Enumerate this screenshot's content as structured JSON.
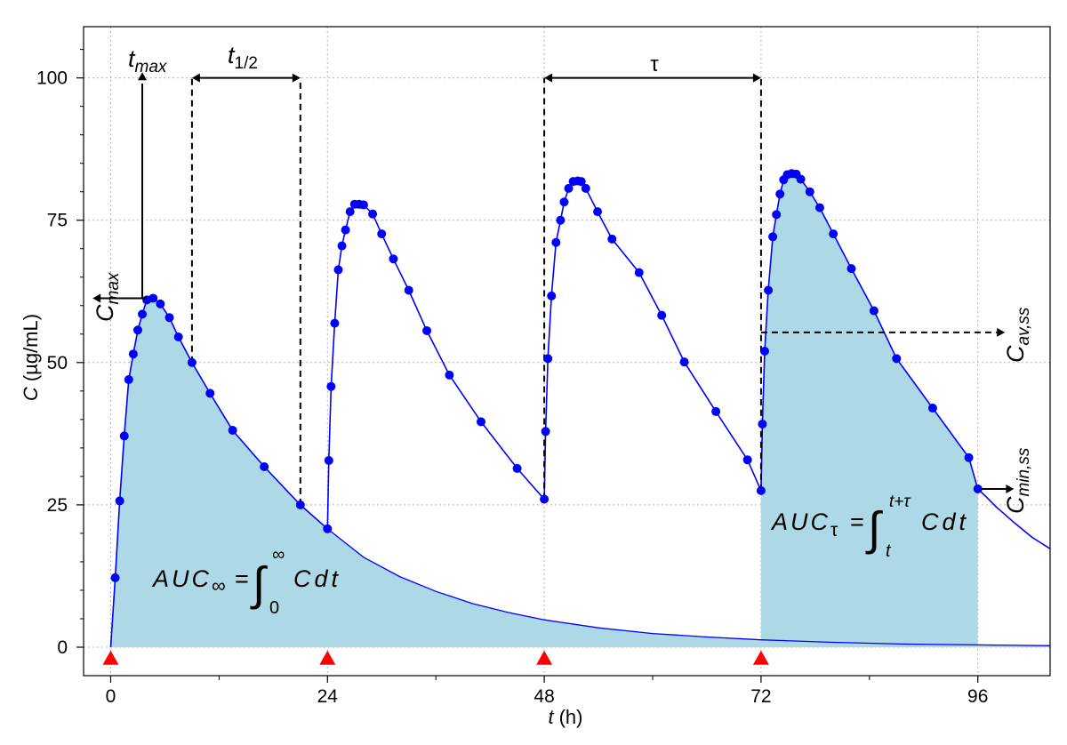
{
  "chart_data": {
    "type": "line",
    "xlabel": "(h)",
    "xlabel_symbol": "t",
    "ylabel": "(µg/mL)",
    "ylabel_symbol": "C",
    "xlim": [
      -3,
      104
    ],
    "ylim": [
      -5,
      109
    ],
    "x_ticks": [
      0,
      24,
      48,
      72,
      96
    ],
    "y_ticks": [
      0,
      25,
      50,
      75,
      100
    ],
    "grid": "dotted",
    "dose_times": [
      0,
      24,
      48,
      72
    ],
    "colors": {
      "curve": "#0000ff",
      "points": "#0000ff",
      "auc_fill": "#add8e6",
      "dose_marker": "#ff0000",
      "tau_label": "#ff0000",
      "grid": "#b4b4b4"
    },
    "series": [
      {
        "values": [
          [
            0,
            0
          ],
          [
            0.5,
            12.2
          ],
          [
            1,
            25.7
          ],
          [
            1.5,
            37.1
          ],
          [
            2,
            47.0
          ],
          [
            2.5,
            51.5
          ],
          [
            3,
            55.7
          ],
          [
            3.5,
            58.5
          ],
          [
            4,
            61.0
          ],
          [
            4.7,
            61.3
          ],
          [
            5.5,
            60.3
          ],
          [
            6.5,
            57.9
          ],
          [
            7.5,
            54.5
          ],
          [
            9,
            50.0
          ],
          [
            11,
            44.6
          ],
          [
            13.5,
            38.1
          ],
          [
            17,
            31.7
          ],
          [
            21,
            25.0
          ],
          [
            24,
            20.8
          ],
          [
            24.15,
            32.8
          ],
          [
            24.4,
            45.8
          ],
          [
            24.8,
            56.9
          ],
          [
            25.2,
            66.3
          ],
          [
            25.6,
            70.5
          ],
          [
            26.0,
            73.3
          ],
          [
            26.5,
            76.5
          ],
          [
            27.0,
            77.8
          ],
          [
            27.5,
            77.8
          ],
          [
            28.0,
            77.7
          ],
          [
            29.0,
            76.1
          ],
          [
            30.0,
            72.6
          ],
          [
            31.3,
            68.2
          ],
          [
            33.0,
            62.7
          ],
          [
            35.0,
            55.6
          ],
          [
            37.5,
            47.8
          ],
          [
            41.0,
            39.6
          ],
          [
            45.0,
            31.4
          ],
          [
            48.0,
            26.0
          ],
          [
            48.15,
            37.9
          ],
          [
            48.4,
            50.7
          ],
          [
            48.8,
            61.7
          ],
          [
            49.3,
            71.1
          ],
          [
            49.8,
            75.0
          ],
          [
            50.2,
            78.2
          ],
          [
            50.7,
            80.6
          ],
          [
            51.2,
            81.8
          ],
          [
            51.7,
            81.9
          ],
          [
            52.1,
            81.8
          ],
          [
            52.6,
            80.6
          ],
          [
            53.9,
            76.5
          ],
          [
            55.5,
            71.7
          ],
          [
            58.5,
            65.8
          ],
          [
            61.0,
            58.3
          ],
          [
            63.5,
            50.1
          ],
          [
            67.0,
            41.4
          ],
          [
            70.5,
            32.9
          ],
          [
            72.0,
            27.5
          ],
          [
            72.15,
            39.2
          ],
          [
            72.4,
            52.0
          ],
          [
            72.8,
            62.7
          ],
          [
            73.3,
            72.1
          ],
          [
            73.7,
            76.0
          ],
          [
            74.1,
            79.6
          ],
          [
            74.5,
            82.1
          ],
          [
            74.9,
            83.0
          ],
          [
            75.4,
            83.2
          ],
          [
            75.9,
            83.1
          ],
          [
            76.4,
            82.2
          ],
          [
            77.4,
            80.0
          ],
          [
            78.5,
            77.2
          ],
          [
            80.0,
            72.6
          ],
          [
            82.0,
            66.5
          ],
          [
            84.5,
            59.1
          ],
          [
            87.0,
            50.7
          ],
          [
            91.0,
            42.0
          ],
          [
            95.0,
            33.3
          ],
          [
            96.0,
            27.8
          ],
          [
            97,
            26.3
          ],
          [
            98,
            24.7
          ],
          [
            100,
            21.9
          ],
          [
            102,
            19.3
          ],
          [
            104,
            17.3
          ]
        ]
      }
    ],
    "single_dose_tail": [
      [
        24,
        20.8
      ],
      [
        28,
        15.8
      ],
      [
        32,
        12.4
      ],
      [
        36,
        9.8
      ],
      [
        40,
        7.7
      ],
      [
        44,
        6.1
      ],
      [
        48,
        4.8
      ],
      [
        54,
        3.4
      ],
      [
        60,
        2.4
      ],
      [
        66,
        1.8
      ],
      [
        72,
        1.3
      ],
      [
        80,
        0.85
      ],
      [
        88,
        0.55
      ],
      [
        96,
        0.4
      ],
      [
        104,
        0.26
      ]
    ],
    "annotations": {
      "t_max": "t",
      "t_max_sub": "max",
      "c_max": "C",
      "c_max_sub": "max",
      "t_half": "t",
      "t_half_sub": "1/2",
      "tau": "τ",
      "c_av_ss": "C",
      "c_av_ss_sub": "av,ss",
      "c_min_ss": "C",
      "c_min_ss_sub": "min,ss",
      "auc_inf_lhs": "AUC",
      "auc_inf_sub": "∞",
      "auc_inf_eq": "=",
      "auc_inf_upper": "∞",
      "auc_inf_lower": "0",
      "auc_inf_integrand": "Cdt",
      "auc_tau_lhs": "AUC",
      "auc_tau_sub": "τ",
      "auc_tau_eq": "=",
      "auc_tau_upper": "t+τ",
      "auc_tau_lower": "t",
      "auc_tau_integrand": "Cdt",
      "integral_sign": "∫"
    }
  }
}
